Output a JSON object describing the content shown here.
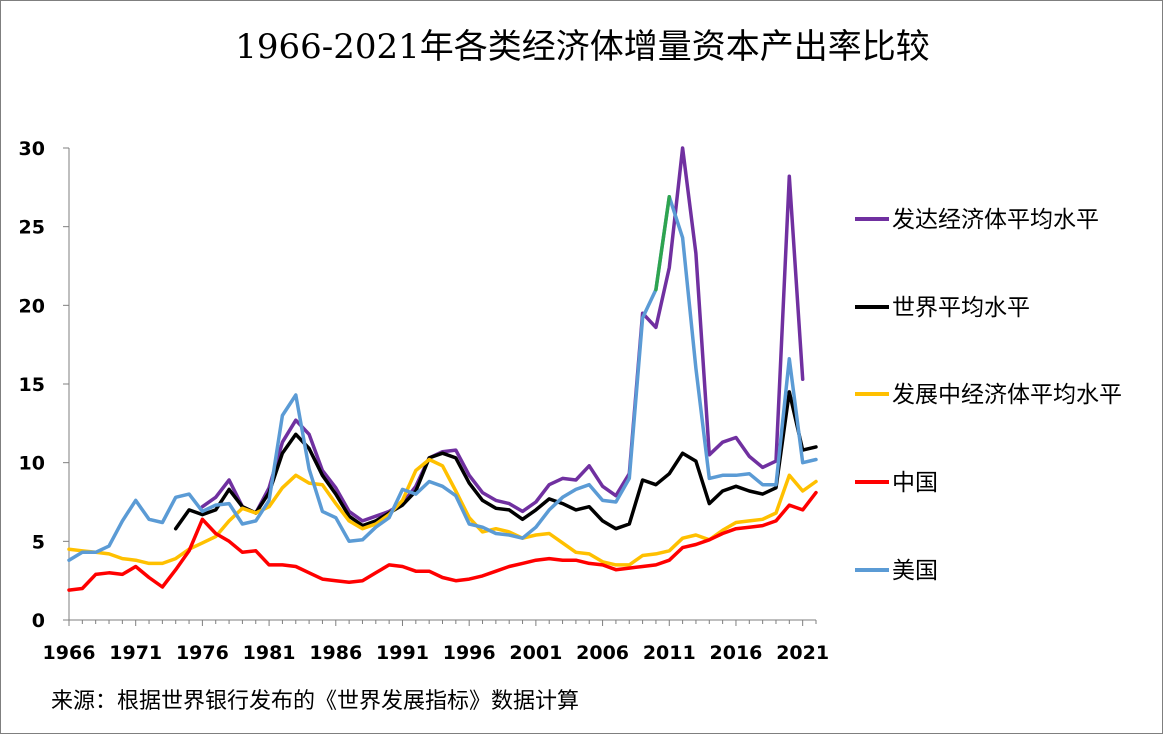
{
  "chart_data": {
    "type": "line",
    "title": "1966-2021年各类经济体增量资本产出率比较",
    "source_note": "来源：根据世界银行发布的《世界发展指标》数据计算",
    "ylim": [
      0,
      30
    ],
    "y_ticks": [
      "0",
      "5",
      "10",
      "15",
      "20",
      "25",
      "30"
    ],
    "x_ticks": [
      "1966",
      "1971",
      "1976",
      "1981",
      "1986",
      "1991",
      "1996",
      "2001",
      "2006",
      "2011",
      "2016",
      "2021"
    ],
    "x_range": [
      1966,
      2022
    ],
    "series": [
      {
        "name": "发达经济体平均水平",
        "color": "#7030a0",
        "x_start": 1976,
        "values": [
          7.2,
          7.8,
          8.9,
          7.2,
          6.8,
          8.4,
          11.3,
          12.7,
          11.8,
          9.5,
          8.4,
          6.9,
          6.3,
          6.6,
          6.9,
          7.4,
          8.5,
          10.3,
          10.7,
          10.8,
          9.2,
          8.1,
          7.6,
          7.4,
          6.9,
          7.5,
          8.6,
          9.0,
          8.9,
          9.8,
          8.5,
          7.9,
          9.3,
          19.5,
          18.6,
          22.4,
          30.0,
          23.3,
          10.5,
          11.3,
          11.6,
          10.4,
          9.7,
          10.1,
          28.2,
          15.3
        ]
      },
      {
        "name": "世界平均水平",
        "color": "#000000",
        "x_start": 1974,
        "values": [
          5.8,
          7.0,
          6.7,
          7.0,
          8.3,
          7.2,
          6.8,
          8.1,
          10.6,
          11.8,
          10.9,
          9.2,
          8.0,
          6.6,
          6.0,
          6.3,
          6.8,
          7.3,
          8.2,
          10.3,
          10.6,
          10.3,
          8.7,
          7.6,
          7.1,
          7.0,
          6.4,
          7.0,
          7.7,
          7.4,
          7.0,
          7.2,
          6.3,
          5.8,
          6.1,
          8.9,
          8.6,
          9.3,
          10.6,
          10.1,
          7.4,
          8.2,
          8.5,
          8.2,
          8.0,
          8.4,
          14.5,
          10.8,
          11.0
        ]
      },
      {
        "name": "发展中经济体平均水平",
        "color": "#ffc000",
        "x_start": 1966,
        "values": [
          4.5,
          4.4,
          4.3,
          4.2,
          3.9,
          3.8,
          3.6,
          3.6,
          3.9,
          4.5,
          4.9,
          5.3,
          6.3,
          7.1,
          6.8,
          7.2,
          8.4,
          9.2,
          8.7,
          8.6,
          7.4,
          6.3,
          5.8,
          6.1,
          6.7,
          7.6,
          9.5,
          10.2,
          9.8,
          8.2,
          6.5,
          5.6,
          5.8,
          5.6,
          5.2,
          5.4,
          5.5,
          4.9,
          4.3,
          4.2,
          3.7,
          3.5,
          3.5,
          4.1,
          4.2,
          4.4,
          5.2,
          5.4,
          5.1,
          5.7,
          6.2,
          6.3,
          6.4,
          6.8,
          9.2,
          8.2,
          8.8
        ]
      },
      {
        "name": "中国",
        "color": "#ff0000",
        "x_start": 1966,
        "values": [
          1.9,
          2.0,
          2.9,
          3.0,
          2.9,
          3.4,
          2.7,
          2.1,
          3.2,
          4.4,
          6.4,
          5.5,
          5.0,
          4.3,
          4.4,
          3.5,
          3.5,
          3.4,
          3.0,
          2.6,
          2.5,
          2.4,
          2.5,
          3.0,
          3.5,
          3.4,
          3.1,
          3.1,
          2.7,
          2.5,
          2.6,
          2.8,
          3.1,
          3.4,
          3.6,
          3.8,
          3.9,
          3.8,
          3.8,
          3.6,
          3.5,
          3.2,
          3.3,
          3.4,
          3.5,
          3.8,
          4.6,
          4.8,
          5.1,
          5.5,
          5.8,
          5.9,
          6.0,
          6.3,
          7.3,
          7.0,
          8.1
        ]
      },
      {
        "name": "美国",
        "color": "#5b9bd5",
        "x_start": 1966,
        "values": [
          3.8,
          4.3,
          4.3,
          4.7,
          6.3,
          7.6,
          6.4,
          6.2,
          7.8,
          8.0,
          6.9,
          7.3,
          7.4,
          6.1,
          6.3,
          7.6,
          13.0,
          14.3,
          9.6,
          6.9,
          6.5,
          5.0,
          5.1,
          5.9,
          6.5,
          8.3,
          8.0,
          8.8,
          8.5,
          7.9,
          6.1,
          5.9,
          5.5,
          5.4,
          5.2,
          5.9,
          7.0,
          7.8,
          8.3,
          8.6,
          7.6,
          7.5,
          9.0,
          19.2,
          21.0,
          26.9,
          24.3,
          16.0,
          9.0,
          9.2,
          9.2,
          9.3,
          8.6,
          8.6,
          16.6,
          10.0,
          10.2
        ]
      }
    ],
    "annotations": [
      {
        "description": "green highlighted segment on 美国 series",
        "from_x": 2010,
        "to_x": 2011,
        "color": "#2ea44f"
      }
    ]
  }
}
